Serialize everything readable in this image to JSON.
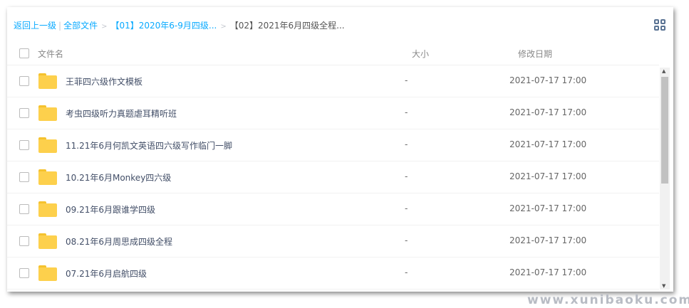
{
  "breadcrumb": {
    "back": "返回上一级",
    "divider": "|",
    "all_files": "全部文件",
    "sep": ">",
    "level1": "【01】2020年6-9月四级...",
    "current": "【02】2021年6月四级全程..."
  },
  "header": {
    "name": "文件名",
    "size": "大小",
    "date": "修改日期"
  },
  "rows": [
    {
      "name": "王菲四六级作文模板",
      "size": "-",
      "date": "2021-07-17 17:00"
    },
    {
      "name": "考虫四级听力真题虐耳精听班",
      "size": "-",
      "date": "2021-07-17 17:00"
    },
    {
      "name": "11.21年6月何凯文英语四六级写作临门一脚",
      "size": "-",
      "date": "2021-07-17 17:00"
    },
    {
      "name": "10.21年6月Monkey四六级",
      "size": "-",
      "date": "2021-07-17 17:00"
    },
    {
      "name": "09.21年6月跟谁学四级",
      "size": "-",
      "date": "2021-07-17 17:00"
    },
    {
      "name": "08.21年6月周思成四级全程",
      "size": "-",
      "date": "2021-07-17 17:00"
    },
    {
      "name": "07.21年6月启航四级",
      "size": "-",
      "date": "2021-07-17 17:00"
    }
  ],
  "watermark": "www.xunibaoku.com",
  "colors": {
    "link": "#09aaff",
    "folder": "#fdd04c"
  }
}
